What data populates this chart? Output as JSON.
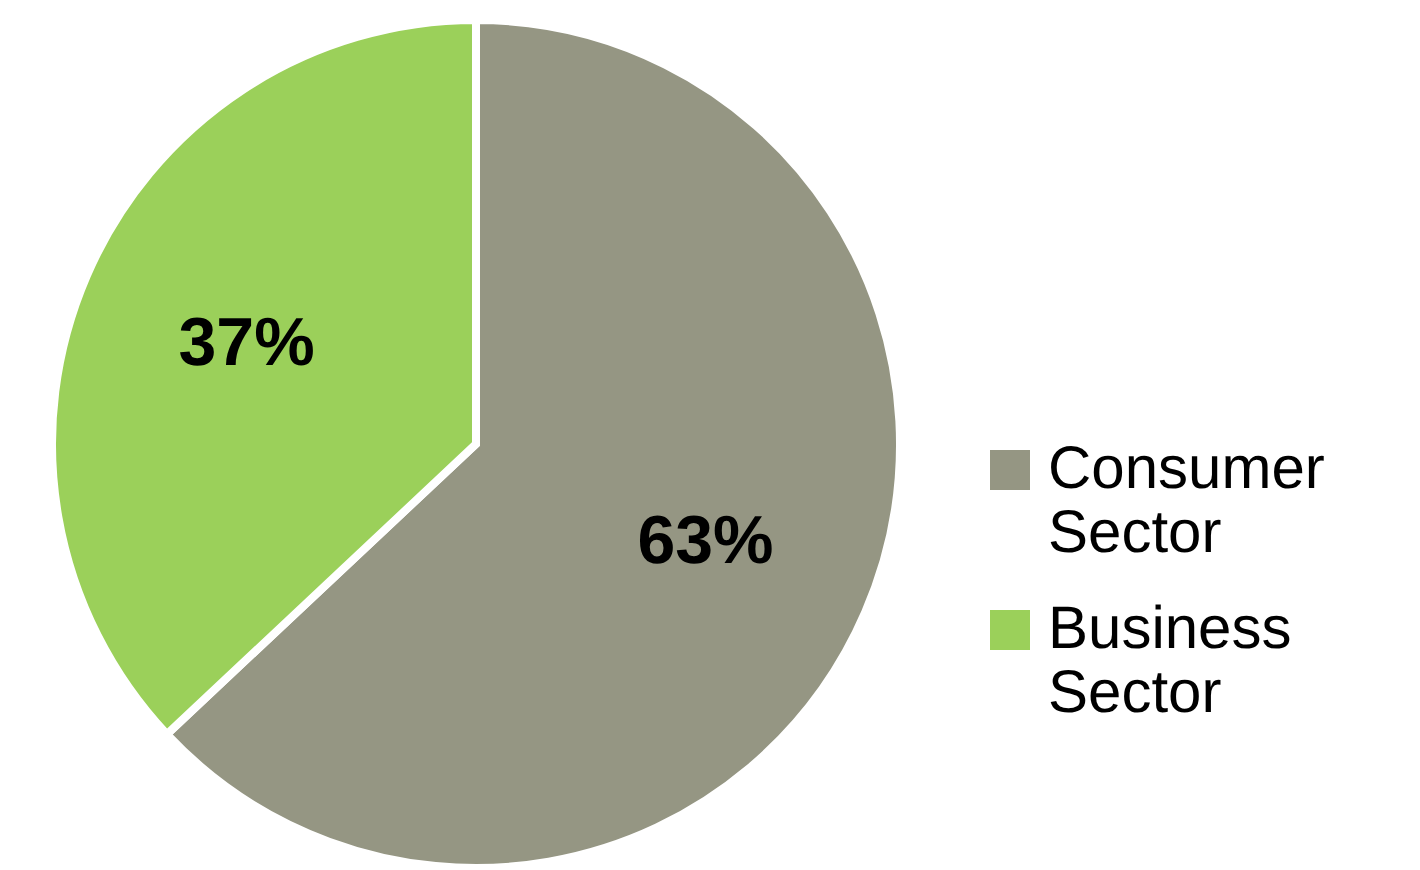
{
  "chart_data": {
    "type": "pie",
    "categories": [
      "Consumer Sector",
      "Business Sector"
    ],
    "values": [
      63,
      37
    ],
    "colors": [
      "#959683",
      "#9bd05a"
    ],
    "value_labels": [
      "63%",
      "37%"
    ],
    "legend": "right"
  }
}
